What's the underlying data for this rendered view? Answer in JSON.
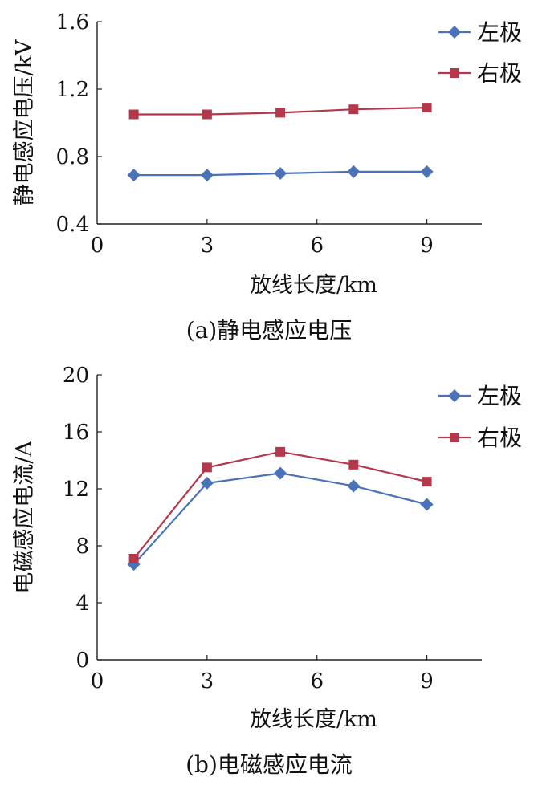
{
  "chart_data": [
    {
      "type": "line",
      "caption": "(a)静电感应电压",
      "xlabel": "放线长度/km",
      "ylabel": "静电感应电压/kV",
      "xlim": [
        0,
        10.5
      ],
      "ylim": [
        0.4,
        1.6
      ],
      "xticks": [
        0,
        3,
        6,
        9
      ],
      "xtick_labels": [
        "0",
        "3",
        "6",
        "9"
      ],
      "yticks": [
        0.4,
        0.8,
        1.2,
        1.6
      ],
      "ytick_labels": [
        "0.4",
        "0.8",
        "1.2",
        "1.6"
      ],
      "legend_position": "top-right",
      "grid": false,
      "x": [
        1,
        3,
        5,
        7,
        9
      ],
      "series": [
        {
          "name": "左极",
          "values": [
            0.69,
            0.69,
            0.7,
            0.71,
            0.71
          ],
          "color": "#4a72b8",
          "marker": "diamond"
        },
        {
          "name": "右极",
          "values": [
            1.05,
            1.05,
            1.06,
            1.08,
            1.09
          ],
          "color": "#b5374b",
          "marker": "square"
        }
      ]
    },
    {
      "type": "line",
      "caption": "(b)电磁感应电流",
      "xlabel": "放线长度/km",
      "ylabel": "电磁感应电流/A",
      "xlim": [
        0,
        10.5
      ],
      "ylim": [
        0,
        20
      ],
      "xticks": [
        0,
        3,
        6,
        9
      ],
      "xtick_labels": [
        "0",
        "3",
        "6",
        "9"
      ],
      "yticks": [
        0,
        4,
        8,
        12,
        16,
        20
      ],
      "ytick_labels": [
        "0",
        "4",
        "8",
        "12",
        "16",
        "20"
      ],
      "legend_position": "top-right",
      "grid": false,
      "x": [
        1,
        3,
        5,
        7,
        9
      ],
      "series": [
        {
          "name": "左极",
          "values": [
            6.7,
            12.4,
            13.1,
            12.2,
            10.9
          ],
          "color": "#4a72b8",
          "marker": "diamond"
        },
        {
          "name": "右极",
          "values": [
            7.1,
            13.5,
            14.6,
            13.7,
            12.5
          ],
          "color": "#b5374b",
          "marker": "square"
        }
      ]
    }
  ]
}
